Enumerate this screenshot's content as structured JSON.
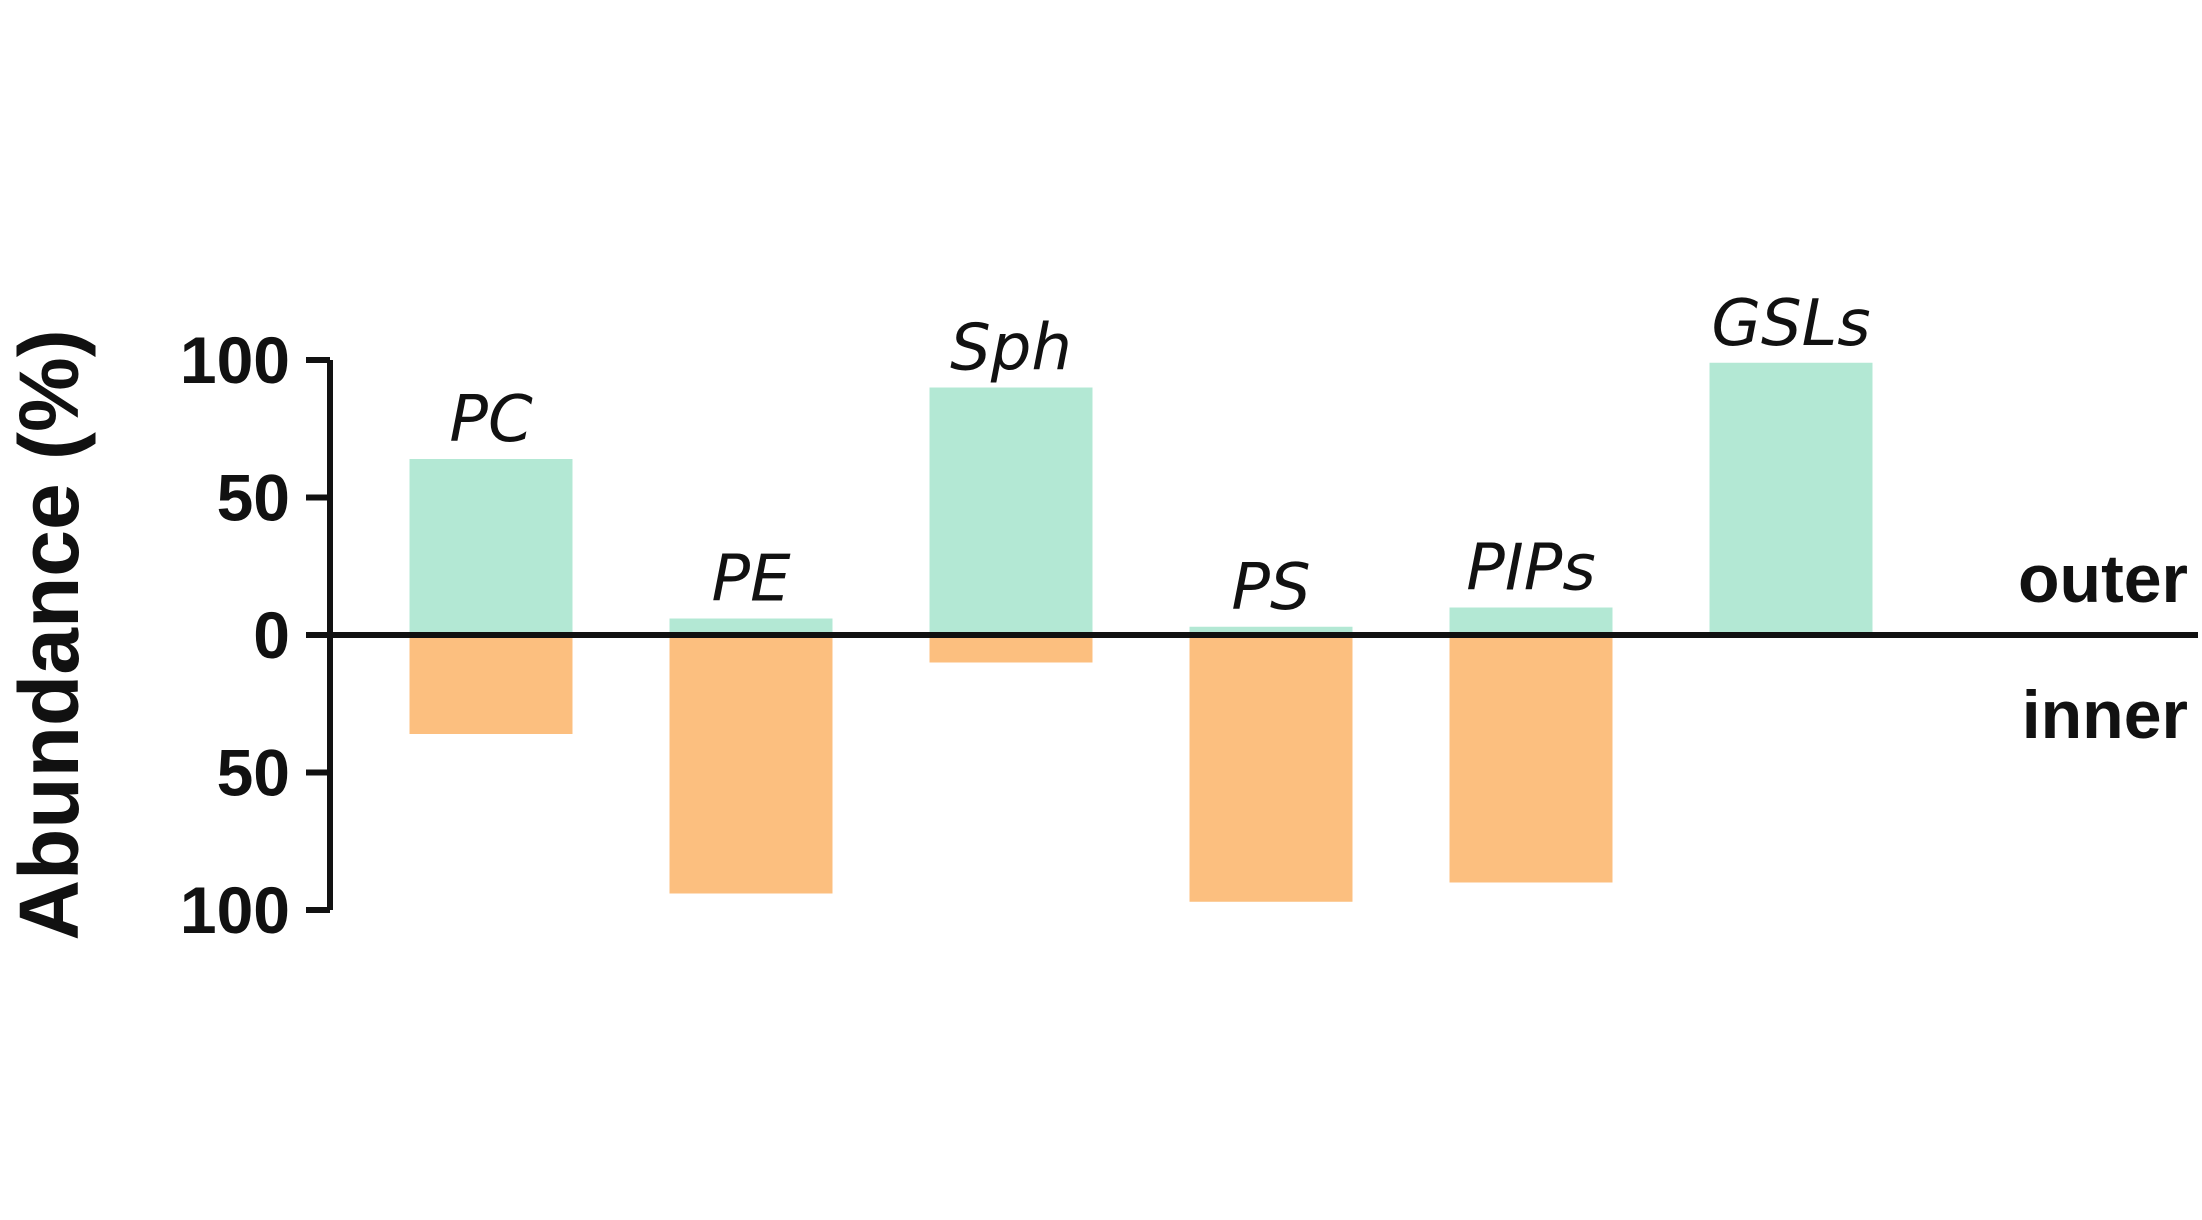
{
  "chart_data": {
    "type": "bar",
    "title": "",
    "xlabel": "",
    "ylabel": "Abundance (%)",
    "categories": [
      "PC",
      "PE",
      "Sph",
      "PS",
      "PIPs",
      "GSLs"
    ],
    "series": [
      {
        "name": "outer",
        "values": [
          64,
          6,
          90,
          3,
          10,
          99
        ],
        "color": "#b3e8d4"
      },
      {
        "name": "inner",
        "values": [
          36,
          94,
          10,
          97,
          90,
          1
        ],
        "color": "#fcbf7f"
      }
    ],
    "ylim": [
      -100,
      100
    ],
    "yticks": [
      {
        "value": 100,
        "label": "100"
      },
      {
        "value": 50,
        "label": "50"
      },
      {
        "value": 0,
        "label": "0"
      },
      {
        "value": -50,
        "label": "50"
      },
      {
        "value": -100,
        "label": "100"
      }
    ],
    "region_labels": {
      "outer": "outer",
      "inner": "inner"
    },
    "grid": false,
    "legend": "none"
  }
}
